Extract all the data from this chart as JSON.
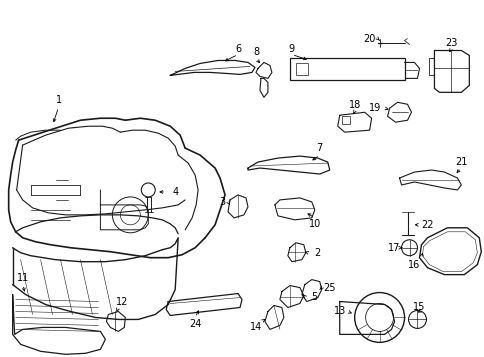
{
  "bg_color": "#ffffff",
  "line_color": "#1a1a1a",
  "fig_width": 4.85,
  "fig_height": 3.57,
  "dpi": 100
}
